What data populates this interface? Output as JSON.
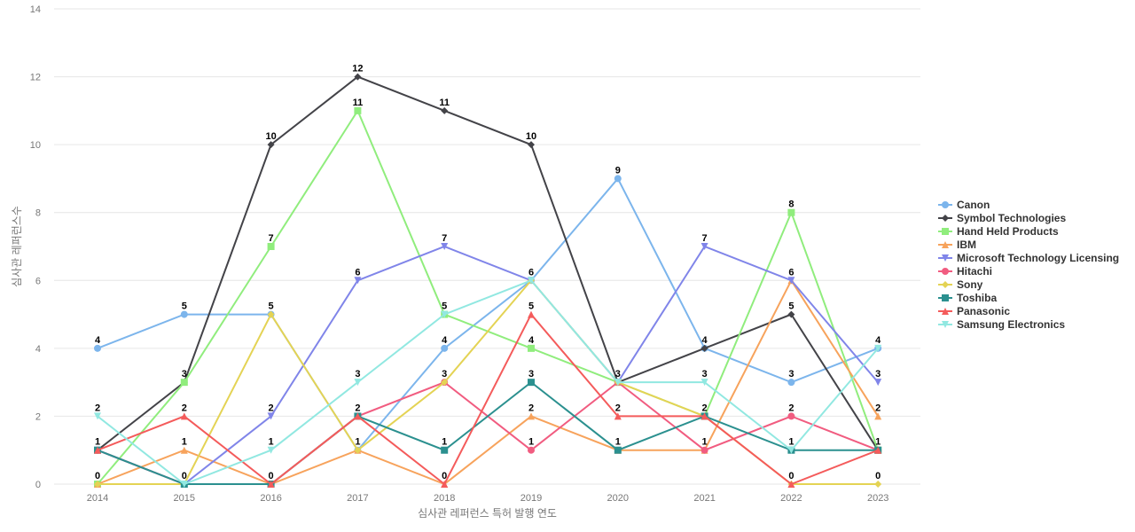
{
  "chart_data": {
    "type": "line",
    "title": "",
    "xlabel": "심사관 레퍼런스 특허 발행 연도",
    "ylabel": "심사관 레퍼런스수",
    "x": [
      "2014",
      "2015",
      "2016",
      "2017",
      "2018",
      "2019",
      "2020",
      "2021",
      "2022",
      "2023"
    ],
    "ylim": [
      0,
      14
    ],
    "yticks": [
      0,
      2,
      4,
      6,
      8,
      10,
      12,
      14
    ],
    "grid": true,
    "legend_position": "right",
    "series": [
      {
        "name": "Canon",
        "color": "#7cb5ec",
        "marker": "circle",
        "values": [
          4,
          5,
          5,
          1,
          4,
          6,
          9,
          4,
          3,
          4
        ]
      },
      {
        "name": "Symbol Technologies",
        "color": "#434348",
        "marker": "diamond",
        "values": [
          1,
          3,
          10,
          12,
          11,
          10,
          3,
          4,
          5,
          1
        ]
      },
      {
        "name": "Hand Held Products",
        "color": "#90ed7d",
        "marker": "square",
        "values": [
          0,
          3,
          7,
          11,
          5,
          4,
          3,
          2,
          8,
          1
        ]
      },
      {
        "name": "IBM",
        "color": "#f7a35c",
        "marker": "triangle",
        "values": [
          0,
          1,
          0,
          1,
          0,
          2,
          1,
          1,
          6,
          2
        ]
      },
      {
        "name": "Microsoft Technology Licensing",
        "color": "#8085e9",
        "marker": "triangle-down",
        "values": [
          1,
          0,
          2,
          6,
          7,
          6,
          3,
          7,
          6,
          3
        ]
      },
      {
        "name": "Hitachi",
        "color": "#f15c80",
        "marker": "circle",
        "values": [
          1,
          0,
          0,
          2,
          3,
          1,
          3,
          1,
          2,
          1
        ]
      },
      {
        "name": "Sony",
        "color": "#e4d354",
        "marker": "diamond",
        "values": [
          0,
          0,
          5,
          1,
          3,
          6,
          3,
          2,
          0,
          0
        ]
      },
      {
        "name": "Toshiba",
        "color": "#2b908f",
        "marker": "square",
        "values": [
          1,
          0,
          0,
          2,
          1,
          3,
          1,
          2,
          1,
          1
        ]
      },
      {
        "name": "Panasonic",
        "color": "#f45b5b",
        "marker": "triangle",
        "values": [
          1,
          2,
          0,
          2,
          0,
          5,
          2,
          2,
          0,
          1
        ]
      },
      {
        "name": "Samsung Electronics",
        "color": "#91e8e1",
        "marker": "triangle-down",
        "values": [
          2,
          0,
          1,
          3,
          5,
          6,
          3,
          3,
          1,
          4
        ]
      }
    ],
    "data_labels": [
      {
        "x": "2014",
        "value": 4
      },
      {
        "x": "2014",
        "value": 2
      },
      {
        "x": "2014",
        "value": 1
      },
      {
        "x": "2014",
        "value": 0
      },
      {
        "x": "2015",
        "value": 5
      },
      {
        "x": "2015",
        "value": 3
      },
      {
        "x": "2015",
        "value": 2
      },
      {
        "x": "2015",
        "value": 1
      },
      {
        "x": "2015",
        "value": 0
      },
      {
        "x": "2016",
        "value": 10
      },
      {
        "x": "2016",
        "value": 7
      },
      {
        "x": "2016",
        "value": 5
      },
      {
        "x": "2016",
        "value": 2
      },
      {
        "x": "2016",
        "value": 1
      },
      {
        "x": "2016",
        "value": 0
      },
      {
        "x": "2017",
        "value": 12
      },
      {
        "x": "2017",
        "value": 11
      },
      {
        "x": "2017",
        "value": 6
      },
      {
        "x": "2017",
        "value": 3
      },
      {
        "x": "2017",
        "value": 2
      },
      {
        "x": "2017",
        "value": 1
      },
      {
        "x": "2018",
        "value": 11
      },
      {
        "x": "2018",
        "value": 7
      },
      {
        "x": "2018",
        "value": 5
      },
      {
        "x": "2018",
        "value": 4
      },
      {
        "x": "2018",
        "value": 3
      },
      {
        "x": "2018",
        "value": 1
      },
      {
        "x": "2018",
        "value": 0
      },
      {
        "x": "2019",
        "value": 10
      },
      {
        "x": "2019",
        "value": 6
      },
      {
        "x": "2019",
        "value": 5
      },
      {
        "x": "2019",
        "value": 4
      },
      {
        "x": "2019",
        "value": 3
      },
      {
        "x": "2019",
        "value": 2
      },
      {
        "x": "2019",
        "value": 1
      },
      {
        "x": "2020",
        "value": 9
      },
      {
        "x": "2020",
        "value": 3
      },
      {
        "x": "2020",
        "value": 2
      },
      {
        "x": "2020",
        "value": 1
      },
      {
        "x": "2021",
        "value": 7
      },
      {
        "x": "2021",
        "value": 4
      },
      {
        "x": "2021",
        "value": 3
      },
      {
        "x": "2021",
        "value": 2
      },
      {
        "x": "2021",
        "value": 1
      },
      {
        "x": "2022",
        "value": 8
      },
      {
        "x": "2022",
        "value": 6
      },
      {
        "x": "2022",
        "value": 5
      },
      {
        "x": "2022",
        "value": 3
      },
      {
        "x": "2022",
        "value": 2
      },
      {
        "x": "2022",
        "value": 1
      },
      {
        "x": "2022",
        "value": 0
      },
      {
        "x": "2023",
        "value": 4
      },
      {
        "x": "2023",
        "value": 3
      },
      {
        "x": "2023",
        "value": 2
      },
      {
        "x": "2023",
        "value": 1
      },
      {
        "x": "2023",
        "value": 0
      }
    ]
  }
}
